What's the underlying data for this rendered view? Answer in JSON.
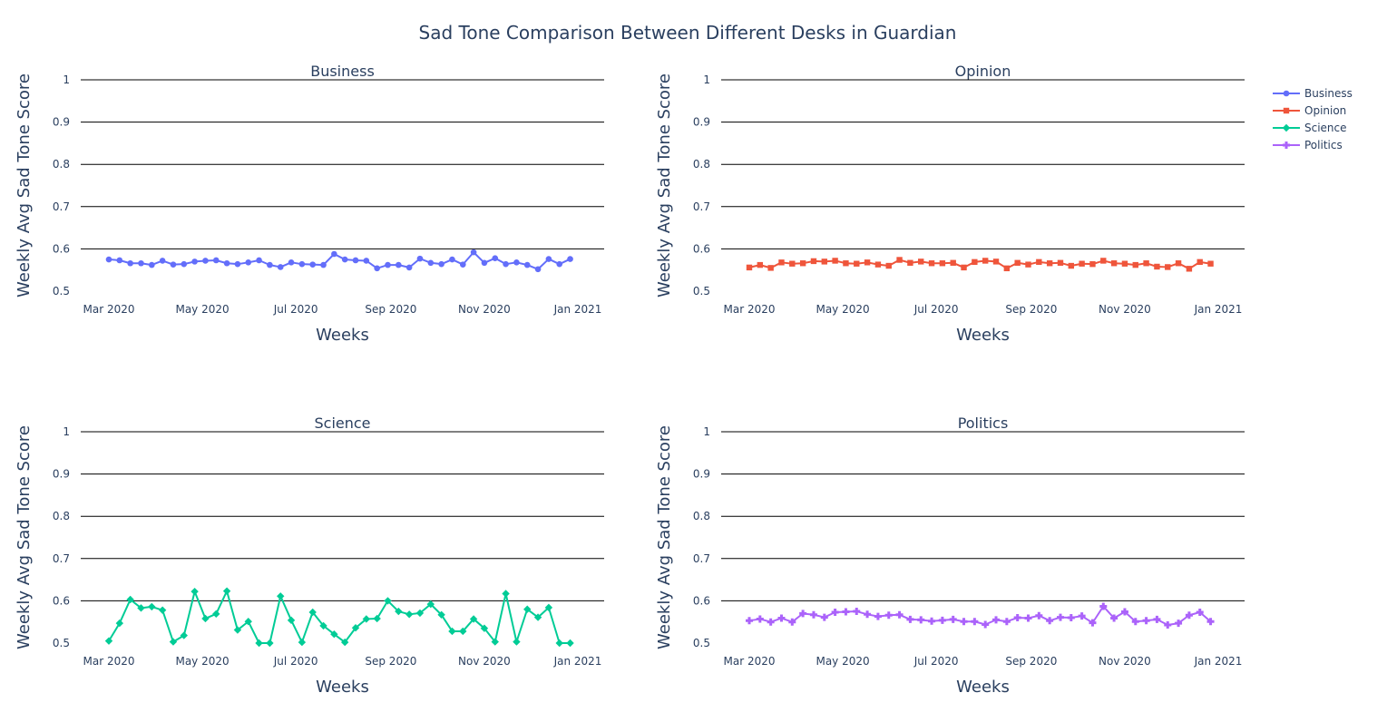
{
  "title": "Sad Tone Comparison Between Different Desks in Guardian",
  "colors": {
    "Business": "#636efa",
    "Opinion": "#ef553b",
    "Science": "#00cc96",
    "Politics": "#ab63fa",
    "grid": "#000000",
    "text": "#2a3f5f"
  },
  "legend": {
    "placement": "top-right",
    "items": [
      {
        "label": "Business",
        "marker": "circle"
      },
      {
        "label": "Opinion",
        "marker": "square"
      },
      {
        "label": "Science",
        "marker": "diamond"
      },
      {
        "label": "Politics",
        "marker": "cross"
      }
    ]
  },
  "chart_data": [
    {
      "type": "line",
      "title": "Business",
      "xlabel": "Weeks",
      "ylabel": "Weekly Avg Sad Tone Score",
      "ylim": [
        0.5,
        1
      ],
      "yticks": [
        "0.5",
        "0.6",
        "0.7",
        "0.8",
        "0.9",
        "1"
      ],
      "xticks": [
        "Mar 2020",
        "May 2020",
        "Jul 2020",
        "Sep 2020",
        "Nov 2020",
        "Jan 2021"
      ],
      "x_start": "2020-03-01",
      "x_interval": "1 week",
      "grid": true,
      "series": [
        {
          "name": "Business",
          "marker": "circle",
          "values": [
            0.575,
            0.573,
            0.566,
            0.566,
            0.562,
            0.572,
            0.563,
            0.564,
            0.57,
            0.572,
            0.573,
            0.566,
            0.564,
            0.568,
            0.573,
            0.562,
            0.557,
            0.568,
            0.564,
            0.563,
            0.562,
            0.588,
            0.575,
            0.573,
            0.572,
            0.554,
            0.562,
            0.562,
            0.556,
            0.577,
            0.567,
            0.564,
            0.575,
            0.563,
            0.592,
            0.567,
            0.578,
            0.564,
            0.568,
            0.562,
            0.552,
            0.576,
            0.564,
            0.576
          ]
        }
      ]
    },
    {
      "type": "line",
      "title": "Opinion",
      "xlabel": "Weeks",
      "ylabel": "Weekly Avg Sad Tone Score",
      "ylim": [
        0.5,
        1
      ],
      "yticks": [
        "0.5",
        "0.6",
        "0.7",
        "0.8",
        "0.9",
        "1"
      ],
      "xticks": [
        "Mar 2020",
        "May 2020",
        "Jul 2020",
        "Sep 2020",
        "Nov 2020",
        "Jan 2021"
      ],
      "x_start": "2020-03-01",
      "x_interval": "1 week",
      "grid": true,
      "series": [
        {
          "name": "Opinion",
          "marker": "square",
          "values": [
            0.556,
            0.562,
            0.555,
            0.568,
            0.565,
            0.566,
            0.571,
            0.57,
            0.572,
            0.566,
            0.565,
            0.568,
            0.563,
            0.56,
            0.574,
            0.567,
            0.57,
            0.566,
            0.566,
            0.567,
            0.556,
            0.569,
            0.572,
            0.57,
            0.554,
            0.567,
            0.563,
            0.569,
            0.566,
            0.567,
            0.56,
            0.565,
            0.564,
            0.572,
            0.566,
            0.565,
            0.562,
            0.566,
            0.558,
            0.557,
            0.566,
            0.553,
            0.569,
            0.565
          ]
        }
      ]
    },
    {
      "type": "line",
      "title": "Science",
      "xlabel": "Weeks",
      "ylabel": "Weekly Avg Sad Tone Score",
      "ylim": [
        0.5,
        1
      ],
      "yticks": [
        "0.5",
        "0.6",
        "0.7",
        "0.8",
        "0.9",
        "1"
      ],
      "xticks": [
        "Mar 2020",
        "May 2020",
        "Jul 2020",
        "Sep 2020",
        "Nov 2020",
        "Jan 2021"
      ],
      "x_start": "2020-03-01",
      "x_interval": "1 week",
      "grid": true,
      "series": [
        {
          "name": "Science",
          "marker": "diamond",
          "values": [
            0.505,
            0.547,
            0.603,
            0.583,
            0.586,
            0.578,
            0.503,
            0.518,
            0.622,
            0.558,
            0.569,
            0.623,
            0.531,
            0.551,
            0.5,
            0.5,
            0.611,
            0.554,
            0.502,
            0.573,
            0.541,
            0.521,
            0.502,
            0.536,
            0.557,
            0.558,
            0.6,
            0.575,
            0.568,
            0.571,
            0.592,
            0.567,
            0.528,
            0.528,
            0.557,
            0.535,
            0.503,
            0.617,
            0.503,
            0.58,
            0.561,
            0.584,
            0.5,
            0.5
          ]
        }
      ]
    },
    {
      "type": "line",
      "title": "Politics",
      "xlabel": "Weeks",
      "ylabel": "Weekly Avg Sad Tone Score",
      "ylim": [
        0.5,
        1
      ],
      "yticks": [
        "0.5",
        "0.6",
        "0.7",
        "0.8",
        "0.9",
        "1"
      ],
      "xticks": [
        "Mar 2020",
        "May 2020",
        "Jul 2020",
        "Sep 2020",
        "Nov 2020",
        "Jan 2021"
      ],
      "x_start": "2020-03-01",
      "x_interval": "1 week",
      "grid": true,
      "series": [
        {
          "name": "Politics",
          "marker": "cross",
          "values": [
            0.553,
            0.557,
            0.55,
            0.559,
            0.55,
            0.57,
            0.567,
            0.561,
            0.573,
            0.574,
            0.575,
            0.568,
            0.563,
            0.566,
            0.567,
            0.556,
            0.555,
            0.552,
            0.554,
            0.556,
            0.551,
            0.551,
            0.544,
            0.555,
            0.551,
            0.56,
            0.559,
            0.565,
            0.553,
            0.561,
            0.56,
            0.564,
            0.548,
            0.587,
            0.559,
            0.574,
            0.551,
            0.553,
            0.556,
            0.543,
            0.547,
            0.566,
            0.573,
            0.551
          ]
        }
      ]
    }
  ]
}
